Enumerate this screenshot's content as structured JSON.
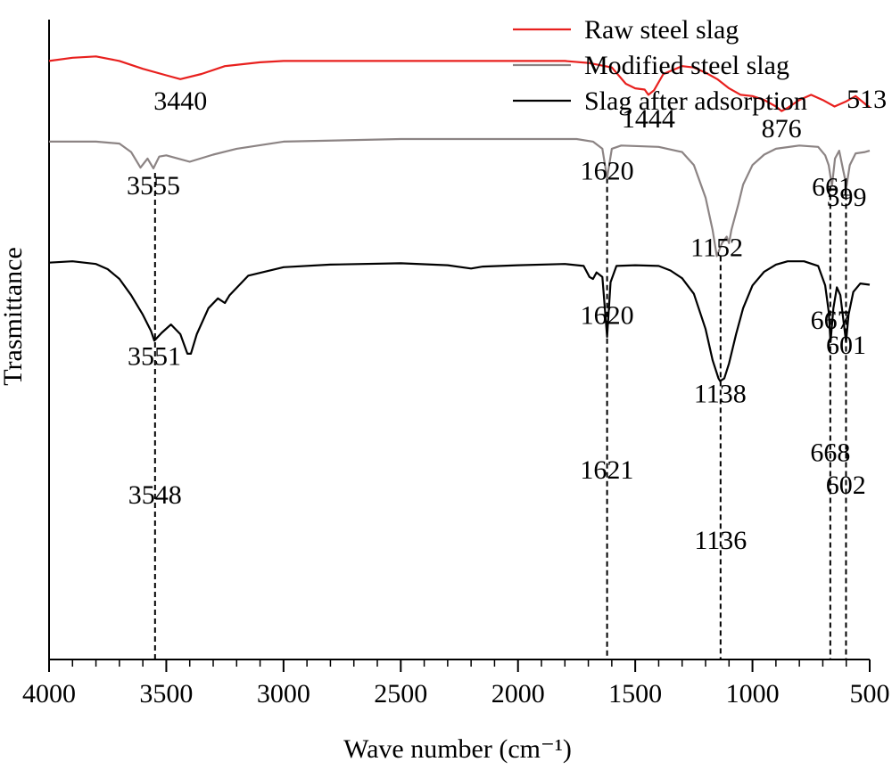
{
  "chart_data": {
    "type": "line",
    "title": "",
    "xlabel": "Wave number (cm⁻¹)",
    "ylabel": "Trasmittance",
    "xlim": [
      4000,
      500
    ],
    "x_reversed": true,
    "x_ticks": [
      4000,
      3500,
      3000,
      2500,
      2000,
      1500,
      1000,
      500
    ],
    "x_tick_labels": [
      "4000",
      "3500",
      "3000",
      "2500",
      "2000",
      "1500",
      "1000",
      "500"
    ],
    "y_ticks_shown": false,
    "grid": false,
    "legend_position": "top-right",
    "series": [
      {
        "name": "Raw steel slag",
        "color": "#e8201e",
        "points": [
          [
            4000,
            0.92
          ],
          [
            3900,
            0.925
          ],
          [
            3800,
            0.927
          ],
          [
            3700,
            0.92
          ],
          [
            3600,
            0.908
          ],
          [
            3500,
            0.898
          ],
          [
            3440,
            0.892
          ],
          [
            3350,
            0.9
          ],
          [
            3250,
            0.912
          ],
          [
            3100,
            0.918
          ],
          [
            3000,
            0.92
          ],
          [
            2500,
            0.92
          ],
          [
            2000,
            0.92
          ],
          [
            1800,
            0.92
          ],
          [
            1700,
            0.917
          ],
          [
            1600,
            0.91
          ],
          [
            1540,
            0.885
          ],
          [
            1500,
            0.878
          ],
          [
            1460,
            0.876
          ],
          [
            1444,
            0.868
          ],
          [
            1420,
            0.875
          ],
          [
            1380,
            0.9
          ],
          [
            1300,
            0.912
          ],
          [
            1250,
            0.91
          ],
          [
            1200,
            0.902
          ],
          [
            1150,
            0.892
          ],
          [
            1100,
            0.878
          ],
          [
            1050,
            0.868
          ],
          [
            1000,
            0.866
          ],
          [
            950,
            0.86
          ],
          [
            900,
            0.85
          ],
          [
            876,
            0.843
          ],
          [
            850,
            0.848
          ],
          [
            800,
            0.86
          ],
          [
            750,
            0.868
          ],
          [
            700,
            0.86
          ],
          [
            650,
            0.85
          ],
          [
            600,
            0.858
          ],
          [
            560,
            0.866
          ],
          [
            513,
            0.852
          ],
          [
            500,
            0.849
          ]
        ]
      },
      {
        "name": "Modified steel slag",
        "color": "#8c8484",
        "points": [
          [
            4000,
            0.796
          ],
          [
            3800,
            0.796
          ],
          [
            3700,
            0.793
          ],
          [
            3650,
            0.78
          ],
          [
            3610,
            0.756
          ],
          [
            3580,
            0.77
          ],
          [
            3555,
            0.755
          ],
          [
            3530,
            0.773
          ],
          [
            3500,
            0.775
          ],
          [
            3450,
            0.77
          ],
          [
            3400,
            0.765
          ],
          [
            3300,
            0.776
          ],
          [
            3200,
            0.785
          ],
          [
            3000,
            0.796
          ],
          [
            2500,
            0.8
          ],
          [
            2000,
            0.8
          ],
          [
            1750,
            0.8
          ],
          [
            1680,
            0.796
          ],
          [
            1640,
            0.785
          ],
          [
            1620,
            0.74
          ],
          [
            1600,
            0.785
          ],
          [
            1560,
            0.79
          ],
          [
            1400,
            0.788
          ],
          [
            1300,
            0.78
          ],
          [
            1250,
            0.76
          ],
          [
            1200,
            0.71
          ],
          [
            1170,
            0.66
          ],
          [
            1152,
            0.62
          ],
          [
            1130,
            0.64
          ],
          [
            1110,
            0.65
          ],
          [
            1100,
            0.64
          ],
          [
            1090,
            0.66
          ],
          [
            1060,
            0.7
          ],
          [
            1040,
            0.73
          ],
          [
            1000,
            0.76
          ],
          [
            950,
            0.776
          ],
          [
            900,
            0.785
          ],
          [
            800,
            0.79
          ],
          [
            720,
            0.788
          ],
          [
            690,
            0.775
          ],
          [
            675,
            0.76
          ],
          [
            661,
            0.728
          ],
          [
            648,
            0.77
          ],
          [
            630,
            0.782
          ],
          [
            612,
            0.75
          ],
          [
            599,
            0.728
          ],
          [
            585,
            0.76
          ],
          [
            560,
            0.778
          ],
          [
            520,
            0.78
          ],
          [
            500,
            0.782
          ]
        ]
      },
      {
        "name": "Slag after adsorption",
        "color": "#000000",
        "points": [
          [
            4000,
            0.61
          ],
          [
            3900,
            0.612
          ],
          [
            3800,
            0.608
          ],
          [
            3750,
            0.6
          ],
          [
            3700,
            0.585
          ],
          [
            3650,
            0.56
          ],
          [
            3600,
            0.53
          ],
          [
            3565,
            0.505
          ],
          [
            3551,
            0.49
          ],
          [
            3520,
            0.502
          ],
          [
            3480,
            0.515
          ],
          [
            3440,
            0.5
          ],
          [
            3410,
            0.47
          ],
          [
            3395,
            0.47
          ],
          [
            3370,
            0.5
          ],
          [
            3320,
            0.54
          ],
          [
            3280,
            0.555
          ],
          [
            3250,
            0.548
          ],
          [
            3230,
            0.56
          ],
          [
            3150,
            0.59
          ],
          [
            3000,
            0.603
          ],
          [
            2800,
            0.607
          ],
          [
            2500,
            0.609
          ],
          [
            2300,
            0.606
          ],
          [
            2200,
            0.601
          ],
          [
            2150,
            0.604
          ],
          [
            2000,
            0.606
          ],
          [
            1800,
            0.608
          ],
          [
            1720,
            0.605
          ],
          [
            1695,
            0.588
          ],
          [
            1680,
            0.585
          ],
          [
            1665,
            0.595
          ],
          [
            1640,
            0.588
          ],
          [
            1620,
            0.496
          ],
          [
            1605,
            0.58
          ],
          [
            1580,
            0.605
          ],
          [
            1500,
            0.606
          ],
          [
            1400,
            0.605
          ],
          [
            1350,
            0.598
          ],
          [
            1300,
            0.586
          ],
          [
            1250,
            0.562
          ],
          [
            1200,
            0.508
          ],
          [
            1170,
            0.46
          ],
          [
            1145,
            0.432
          ],
          [
            1138,
            0.428
          ],
          [
            1120,
            0.432
          ],
          [
            1100,
            0.455
          ],
          [
            1070,
            0.5
          ],
          [
            1040,
            0.54
          ],
          [
            1000,
            0.575
          ],
          [
            950,
            0.596
          ],
          [
            900,
            0.607
          ],
          [
            850,
            0.612
          ],
          [
            780,
            0.612
          ],
          [
            720,
            0.605
          ],
          [
            690,
            0.575
          ],
          [
            675,
            0.535
          ],
          [
            667,
            0.488
          ],
          [
            655,
            0.54
          ],
          [
            640,
            0.572
          ],
          [
            625,
            0.56
          ],
          [
            601,
            0.488
          ],
          [
            590,
            0.53
          ],
          [
            570,
            0.565
          ],
          [
            540,
            0.578
          ],
          [
            500,
            0.576
          ]
        ]
      }
    ],
    "annotations": [
      {
        "text": "3440",
        "x": 3440,
        "y": 0.845
      },
      {
        "text": "1444",
        "x": 1444,
        "y": 0.818
      },
      {
        "text": "876",
        "x": 876,
        "y": 0.803
      },
      {
        "text": "513",
        "x": 513,
        "y": 0.848
      },
      {
        "text": "3555",
        "x": 3555,
        "y": 0.715
      },
      {
        "text": "1620",
        "x": 1620,
        "y": 0.738
      },
      {
        "text": "1152",
        "x": 1152,
        "y": 0.62
      },
      {
        "text": "661",
        "x": 661,
        "y": 0.713
      },
      {
        "text": "599",
        "x": 599,
        "y": 0.697
      },
      {
        "text": "3551",
        "x": 3551,
        "y": 0.453
      },
      {
        "text": "1620",
        "x": 1620,
        "y": 0.516
      },
      {
        "text": "1138",
        "x": 1138,
        "y": 0.395
      },
      {
        "text": "667",
        "x": 667,
        "y": 0.508
      },
      {
        "text": "601",
        "x": 601,
        "y": 0.47
      },
      {
        "text": "3548",
        "x": 3548,
        "y": 0.24
      },
      {
        "text": "1621",
        "x": 1621,
        "y": 0.278
      },
      {
        "text": "1136",
        "x": 1136,
        "y": 0.17
      },
      {
        "text": "668",
        "x": 668,
        "y": 0.305
      },
      {
        "text": "602",
        "x": 602,
        "y": 0.255
      }
    ],
    "reference_lines": [
      {
        "x": 3548,
        "from_y": 0.0,
        "to_y": 0.748
      },
      {
        "x": 1620,
        "from_y": 0.0,
        "to_y": 0.74
      },
      {
        "x": 1136,
        "from_y": 0.0,
        "to_y": 0.62
      },
      {
        "x": 668,
        "from_y": 0.0,
        "to_y": 0.728
      },
      {
        "x": 601,
        "from_y": 0.0,
        "to_y": 0.728
      }
    ]
  }
}
